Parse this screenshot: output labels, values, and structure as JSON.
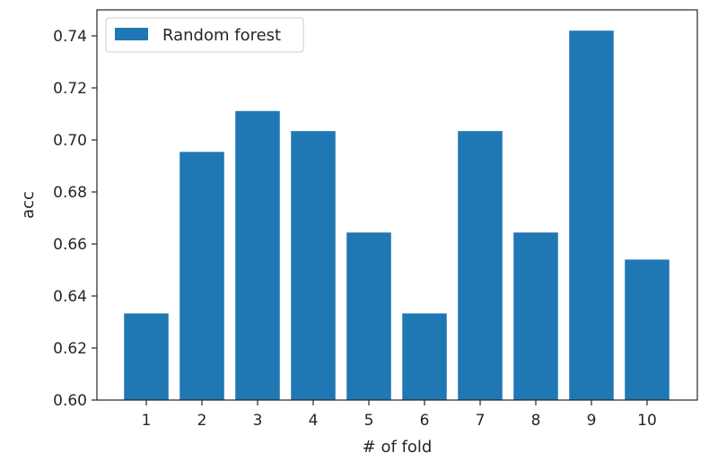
{
  "chart_data": {
    "type": "bar",
    "title": "",
    "xlabel": "# of fold",
    "ylabel": "acc",
    "categories": [
      "1",
      "2",
      "3",
      "4",
      "5",
      "6",
      "7",
      "8",
      "9",
      "10"
    ],
    "series": [
      {
        "name": "Random forest",
        "color": "#1f77b4",
        "values": [
          0.6333,
          0.6954,
          0.7111,
          0.7034,
          0.6644,
          0.6333,
          0.7034,
          0.6644,
          0.742,
          0.654
        ]
      }
    ],
    "ylim": [
      0.6,
      0.75
    ],
    "yticks": [
      "0.60",
      "0.62",
      "0.64",
      "0.66",
      "0.68",
      "0.70",
      "0.72",
      "0.74"
    ],
    "legend_position": "top-left",
    "grid": false
  }
}
